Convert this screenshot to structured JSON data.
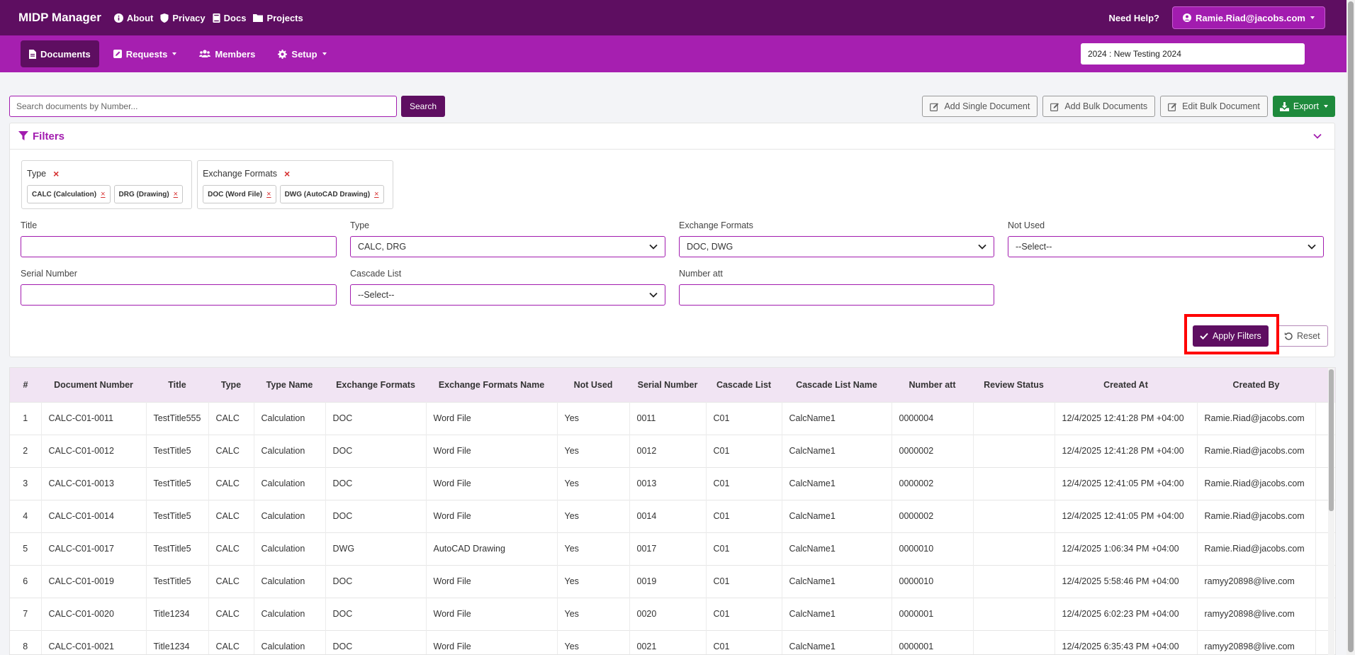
{
  "header": {
    "brand": "MIDP Manager",
    "links": [
      "About",
      "Privacy",
      "Docs",
      "Projects"
    ],
    "need_help": "Need Help?",
    "user": "Ramie.Riad@jacobs.com"
  },
  "nav": {
    "items": [
      "Documents",
      "Requests",
      "Members",
      "Setup"
    ],
    "project": "2024 : New Testing 2024"
  },
  "search": {
    "placeholder": "Search documents by Number...",
    "button": "Search"
  },
  "actions": {
    "add_single": "Add Single Document",
    "add_bulk": "Add Bulk Documents",
    "edit_bulk": "Edit Bulk Document",
    "export": "Export"
  },
  "filters": {
    "title": "Filters",
    "chip_groups": [
      {
        "label": "Type",
        "chips": [
          "CALC (Calculation)",
          "DRG (Drawing)"
        ]
      },
      {
        "label": "Exchange Formats",
        "chips": [
          "DOC (Word File)",
          "DWG (AutoCAD Drawing)"
        ]
      }
    ],
    "fields": {
      "title": {
        "label": "Title",
        "value": ""
      },
      "type": {
        "label": "Type",
        "value": "CALC, DRG"
      },
      "exchange_formats": {
        "label": "Exchange Formats",
        "value": "DOC, DWG"
      },
      "not_used": {
        "label": "Not Used",
        "value": "--Select--"
      },
      "serial_number": {
        "label": "Serial Number",
        "value": ""
      },
      "cascade_list": {
        "label": "Cascade List",
        "value": "--Select--"
      },
      "number_att": {
        "label": "Number att",
        "value": ""
      }
    },
    "apply": "Apply Filters",
    "reset": "Reset"
  },
  "table": {
    "columns": [
      "#",
      "Document Number",
      "Title",
      "Type",
      "Type Name",
      "Exchange Formats",
      "Exchange Formats Name",
      "Not Used",
      "Serial Number",
      "Cascade List",
      "Cascade List Name",
      "Number att",
      "Review Status",
      "Created At",
      "Created By"
    ],
    "rows": [
      [
        "1",
        "CALC-C01-0011",
        "TestTitle555",
        "CALC",
        "Calculation",
        "DOC",
        "Word File",
        "Yes",
        "0011",
        "C01",
        "CalcName1",
        "0000004",
        "",
        "12/4/2025 12:41:28 PM +04:00",
        "Ramie.Riad@jacobs.com"
      ],
      [
        "2",
        "CALC-C01-0012",
        "TestTitle5",
        "CALC",
        "Calculation",
        "DOC",
        "Word File",
        "Yes",
        "0012",
        "C01",
        "CalcName1",
        "0000002",
        "",
        "12/4/2025 12:41:28 PM +04:00",
        "Ramie.Riad@jacobs.com"
      ],
      [
        "3",
        "CALC-C01-0013",
        "TestTitle5",
        "CALC",
        "Calculation",
        "DOC",
        "Word File",
        "Yes",
        "0013",
        "C01",
        "CalcName1",
        "0000002",
        "",
        "12/4/2025 12:41:05 PM +04:00",
        "Ramie.Riad@jacobs.com"
      ],
      [
        "4",
        "CALC-C01-0014",
        "TestTitle5",
        "CALC",
        "Calculation",
        "DOC",
        "Word File",
        "Yes",
        "0014",
        "C01",
        "CalcName1",
        "0000002",
        "",
        "12/4/2025 12:41:05 PM +04:00",
        "Ramie.Riad@jacobs.com"
      ],
      [
        "5",
        "CALC-C01-0017",
        "TestTitle5",
        "CALC",
        "Calculation",
        "DWG",
        "AutoCAD Drawing",
        "Yes",
        "0017",
        "C01",
        "CalcName1",
        "0000010",
        "",
        "12/4/2025 1:06:34 PM +04:00",
        "Ramie.Riad@jacobs.com"
      ],
      [
        "6",
        "CALC-C01-0019",
        "TestTitle5",
        "CALC",
        "Calculation",
        "DOC",
        "Word File",
        "Yes",
        "0019",
        "C01",
        "CalcName1",
        "0000010",
        "",
        "12/4/2025 5:58:46 PM +04:00",
        "ramyy20898@live.com"
      ],
      [
        "7",
        "CALC-C01-0020",
        "Title1234",
        "CALC",
        "Calculation",
        "DOC",
        "Word File",
        "Yes",
        "0020",
        "C01",
        "CalcName1",
        "0000001",
        "",
        "12/4/2025 6:02:23 PM +04:00",
        "ramyy20898@live.com"
      ],
      [
        "8",
        "CALC-C01-0021",
        "Title1234",
        "CALC",
        "Calculation",
        "DOC",
        "Word File",
        "Yes",
        "0021",
        "C01",
        "CalcName1",
        "0000001",
        "",
        "12/4/2025 6:35:43 PM +04:00",
        "ramyy20898@live.com"
      ]
    ]
  },
  "colors": {
    "primary": "#5e0e61",
    "accent": "#a61fb0",
    "export": "#1e8a3c",
    "highlight": "#ff0000"
  }
}
